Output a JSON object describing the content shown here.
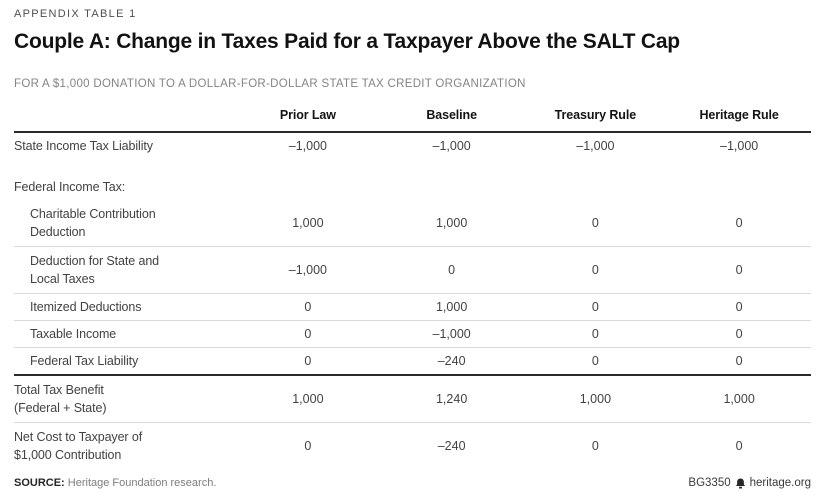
{
  "header": {
    "eyebrow": "APPENDIX TABLE 1",
    "title": "Couple A: Change in Taxes Paid for a Taxpayer Above the SALT Cap",
    "subtitle": "FOR A $1,000 DONATION TO A DOLLAR-FOR-DOLLAR STATE TAX CREDIT ORGANIZATION"
  },
  "table": {
    "columns": [
      "Prior Law",
      "Baseline",
      "Treasury Rule",
      "Heritage Rule"
    ],
    "rows": [
      {
        "label": "State Income Tax Liability",
        "values": [
          "–1,000",
          "–1,000",
          "–1,000",
          "–1,000"
        ],
        "indent": false,
        "section": false,
        "divider": false,
        "rule_above": false
      },
      {
        "label": "Federal Income Tax:",
        "values": [
          "",
          "",
          "",
          ""
        ],
        "indent": false,
        "section": true,
        "divider": false,
        "rule_above": false
      },
      {
        "label": "Charitable Contribution\nDeduction",
        "values": [
          "1,000",
          "1,000",
          "0",
          "0"
        ],
        "indent": true,
        "section": false,
        "divider": true,
        "rule_above": false
      },
      {
        "label": "Deduction for State and\nLocal Taxes",
        "values": [
          "–1,000",
          "0",
          "0",
          "0"
        ],
        "indent": true,
        "section": false,
        "divider": true,
        "rule_above": false
      },
      {
        "label": "Itemized Deductions",
        "values": [
          "0",
          "1,000",
          "0",
          "0"
        ],
        "indent": true,
        "section": false,
        "divider": true,
        "rule_above": false
      },
      {
        "label": "Taxable Income",
        "values": [
          "0",
          "–1,000",
          "0",
          "0"
        ],
        "indent": true,
        "section": false,
        "divider": true,
        "rule_above": false
      },
      {
        "label": "Federal Tax Liability",
        "values": [
          "0",
          "–240",
          "0",
          "0"
        ],
        "indent": true,
        "section": false,
        "divider": false,
        "rule_above": false
      },
      {
        "label": "Total Tax Benefit\n(Federal + State)",
        "values": [
          "1,000",
          "1,240",
          "1,000",
          "1,000"
        ],
        "indent": false,
        "section": false,
        "divider": true,
        "rule_above": true
      },
      {
        "label": "Net Cost to Taxpayer of\n$1,000 Contribution",
        "values": [
          "0",
          "–240",
          "0",
          "0"
        ],
        "indent": false,
        "section": false,
        "divider": false,
        "rule_above": false
      }
    ]
  },
  "footer": {
    "source_label": "SOURCE:",
    "source_text": " Heritage Foundation research.",
    "doc_id": "BG3350",
    "site": "heritage.org",
    "logo_icon": "heritage-bell-icon"
  },
  "colors": {
    "rule_dark": "#2a2a2a",
    "divider_light": "#dadada",
    "text_dark": "#121212",
    "text_body": "#424242",
    "text_gray": "#848484"
  },
  "chart_data": {
    "type": "table",
    "title": "Couple A: Change in Taxes Paid for a Taxpayer Above the SALT Cap",
    "subtitle": "For a $1,000 donation to a dollar-for-dollar state tax credit organization",
    "columns": [
      "Prior Law",
      "Baseline",
      "Treasury Rule",
      "Heritage Rule"
    ],
    "rows": [
      {
        "label": "State Income Tax Liability",
        "values": [
          -1000,
          -1000,
          -1000,
          -1000
        ]
      },
      {
        "label": "Federal Income Tax: Charitable Contribution Deduction",
        "values": [
          1000,
          1000,
          0,
          0
        ]
      },
      {
        "label": "Federal Income Tax: Deduction for State and Local Taxes",
        "values": [
          -1000,
          0,
          0,
          0
        ]
      },
      {
        "label": "Federal Income Tax: Itemized Deductions",
        "values": [
          0,
          1000,
          0,
          0
        ]
      },
      {
        "label": "Federal Income Tax: Taxable Income",
        "values": [
          0,
          -1000,
          0,
          0
        ]
      },
      {
        "label": "Federal Income Tax: Federal Tax Liability",
        "values": [
          0,
          -240,
          0,
          0
        ]
      },
      {
        "label": "Total Tax Benefit (Federal + State)",
        "values": [
          1000,
          1240,
          1000,
          1000
        ]
      },
      {
        "label": "Net Cost to Taxpayer of $1,000 Contribution",
        "values": [
          0,
          -240,
          0,
          0
        ]
      }
    ],
    "source": "Heritage Foundation research.",
    "doc_id": "BG3350"
  }
}
